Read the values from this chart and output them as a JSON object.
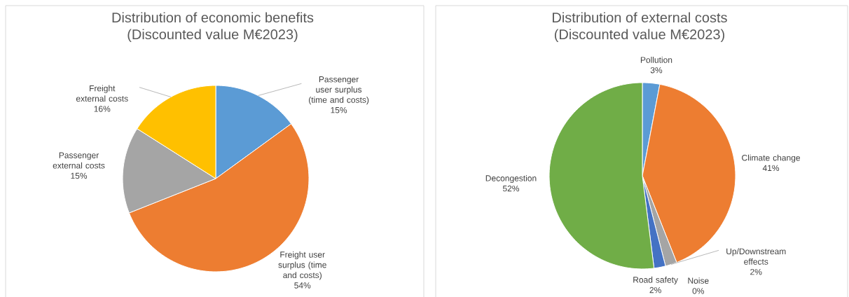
{
  "chart_data": [
    {
      "type": "pie",
      "title": "Distribution of economic benefits",
      "subtitle": "(Discounted value M€2023)",
      "categories": [
        "Passenger user surplus (time and costs)",
        "Freight user surplus (time and costs)",
        "Passenger external costs",
        "Freight external costs"
      ],
      "values": [
        15,
        54,
        15,
        16
      ],
      "colors": [
        "#5b9bd5",
        "#ed7d31",
        "#a5a5a5",
        "#ffc000"
      ],
      "value_labels": [
        "15%",
        "54%",
        "15%",
        "16%"
      ]
    },
    {
      "type": "pie",
      "title": "Distribution of external costs",
      "subtitle": "(Discounted value M€2023)",
      "categories": [
        "Pollution",
        "Climate change",
        "Up/Downstream effects",
        "Noise",
        "Road safety",
        "Decongestion"
      ],
      "values": [
        3,
        41,
        2,
        0,
        2,
        52
      ],
      "colors": [
        "#5b9bd5",
        "#ed7d31",
        "#a5a5a5",
        "#ffc000",
        "#4472c4",
        "#70ad47"
      ],
      "value_labels": [
        "3%",
        "41%",
        "2%",
        "0%",
        "2%",
        "52%"
      ]
    }
  ]
}
